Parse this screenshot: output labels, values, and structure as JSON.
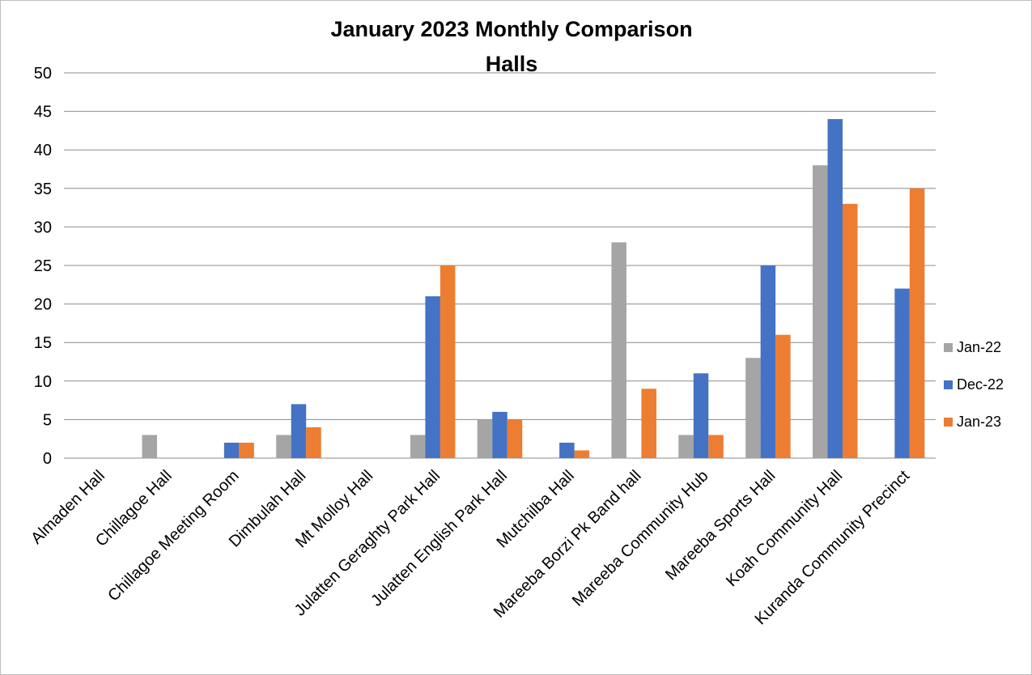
{
  "chart_data": {
    "type": "bar",
    "title_line1": "January 2023 Monthly Comparison",
    "title_line2": "Halls",
    "xlabel": "",
    "ylabel": "",
    "ylim": [
      0,
      50
    ],
    "ytick_step": 5,
    "grid": true,
    "legend_position": "right",
    "categories": [
      "Almaden Hall",
      "Chillagoe Hall",
      "Chillagoe Meeting Room",
      "Dimbulah Hall",
      "Mt Molloy Hall",
      "Julatten Geraghty Park Hall",
      "Julatten English Park Hall",
      "Mutchilba Hall",
      "Mareeba Borzi Pk Band hall",
      "Mareeba Community Hub",
      "Mareeba Sports Hall",
      "Koah Community Hall",
      "Kuranda Community Precinct"
    ],
    "series": [
      {
        "name": "Jan-22",
        "color": "#a5a5a5",
        "values": [
          0,
          3,
          0,
          3,
          0,
          3,
          5,
          0,
          28,
          3,
          13,
          38,
          0
        ]
      },
      {
        "name": "Dec-22",
        "color": "#4472c4",
        "values": [
          0,
          0,
          2,
          7,
          0,
          21,
          6,
          2,
          0,
          11,
          25,
          44,
          22
        ]
      },
      {
        "name": "Jan-23",
        "color": "#ed7d31",
        "values": [
          0,
          0,
          2,
          4,
          0,
          25,
          5,
          1,
          9,
          3,
          16,
          33,
          35
        ]
      }
    ]
  }
}
